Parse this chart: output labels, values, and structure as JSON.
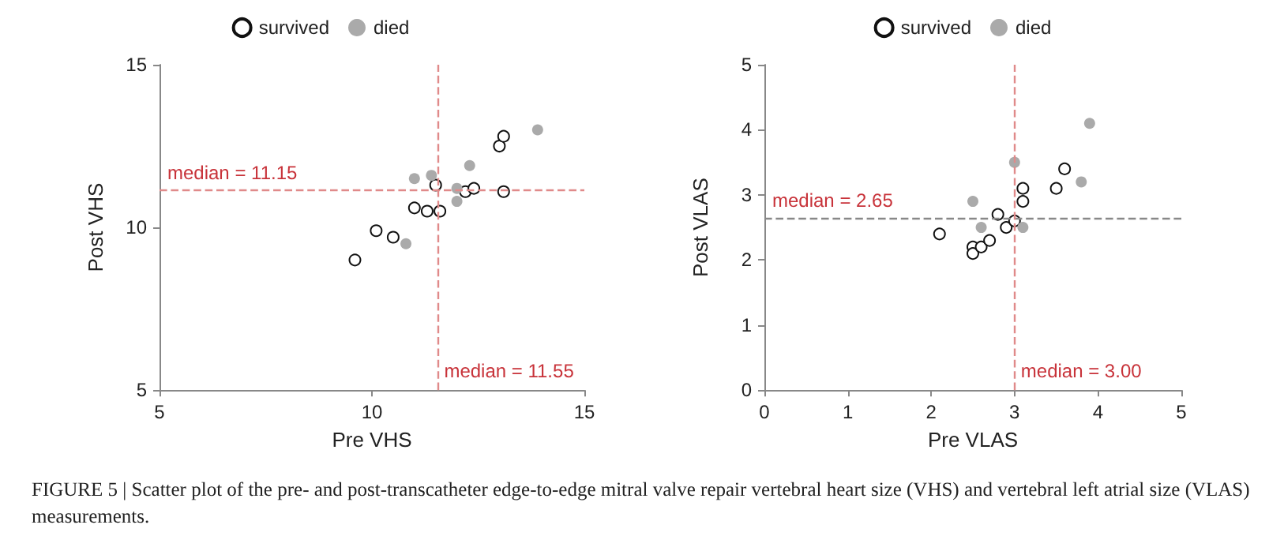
{
  "chart_data": [
    {
      "type": "scatter",
      "xlabel": "Pre VHS",
      "ylabel": "Post VHS",
      "xlim": [
        5,
        15
      ],
      "xticks": [
        5,
        10,
        15
      ],
      "ylim": [
        5,
        15
      ],
      "yticks": [
        5,
        10,
        15
      ],
      "legend": "top",
      "grid": false,
      "marker": "circle",
      "series": [
        {
          "name": "survived",
          "color": "#ffffff",
          "x": [
            9.6,
            10.1,
            10.5,
            11.0,
            11.3,
            11.6,
            11.5,
            12.2,
            12.4,
            13.0,
            13.1,
            13.1
          ],
          "values": [
            9.0,
            9.9,
            9.7,
            10.6,
            10.5,
            10.5,
            11.3,
            11.1,
            11.2,
            12.5,
            12.8,
            11.1
          ]
        },
        {
          "name": "died",
          "color": "#aaaaaa",
          "x": [
            10.8,
            11.0,
            11.4,
            12.0,
            12.0,
            12.3,
            13.9
          ],
          "values": [
            9.5,
            11.5,
            11.6,
            11.2,
            10.8,
            11.9,
            13.0
          ]
        }
      ],
      "ref_lines": [
        {
          "axis": "y",
          "value": 11.15,
          "label": "median = 11.15",
          "color": "#e08a8a",
          "line_style": "dashed"
        },
        {
          "axis": "x",
          "value": 11.55,
          "label": "median = 11.55",
          "color": "#e08a8a",
          "line_style": "dashed"
        }
      ],
      "annotations": [
        "FIGURE 5 | Scatter plot of the pre- and post-transcatheter edge-to-edge mitral valve repair vertebral heart size (VHS) and vertebral left atrial size (VLAS) measurements."
      ]
    },
    {
      "type": "scatter",
      "xlabel": "Pre VLAS",
      "ylabel": "Post VLAS",
      "xlim": [
        0,
        5
      ],
      "xticks": [
        0,
        1,
        2,
        3,
        4,
        5
      ],
      "ylim": [
        0,
        5
      ],
      "yticks": [
        0,
        1,
        2,
        3,
        4,
        5
      ],
      "legend": "top",
      "grid": false,
      "marker": "circle",
      "series": [
        {
          "name": "survived",
          "color": "#ffffff",
          "x": [
            2.1,
            2.5,
            2.5,
            2.6,
            2.7,
            2.8,
            2.9,
            3.0,
            3.1,
            3.1,
            3.5,
            3.6
          ],
          "values": [
            2.4,
            2.2,
            2.1,
            2.2,
            2.3,
            2.7,
            2.5,
            2.6,
            3.1,
            2.9,
            3.1,
            3.4
          ]
        },
        {
          "name": "died",
          "color": "#aaaaaa",
          "x": [
            2.5,
            2.6,
            3.0,
            3.1,
            3.8,
            3.9
          ],
          "values": [
            2.9,
            2.5,
            3.5,
            2.5,
            3.2,
            4.1
          ]
        }
      ],
      "ref_lines": [
        {
          "axis": "y",
          "value": 2.65,
          "label": "median = 2.65",
          "color": "#888888",
          "line_style": "dashed"
        },
        {
          "axis": "x",
          "value": 3.0,
          "label": "median = 3.00",
          "color": "#e08a8a",
          "line_style": "dashed"
        }
      ]
    }
  ]
}
